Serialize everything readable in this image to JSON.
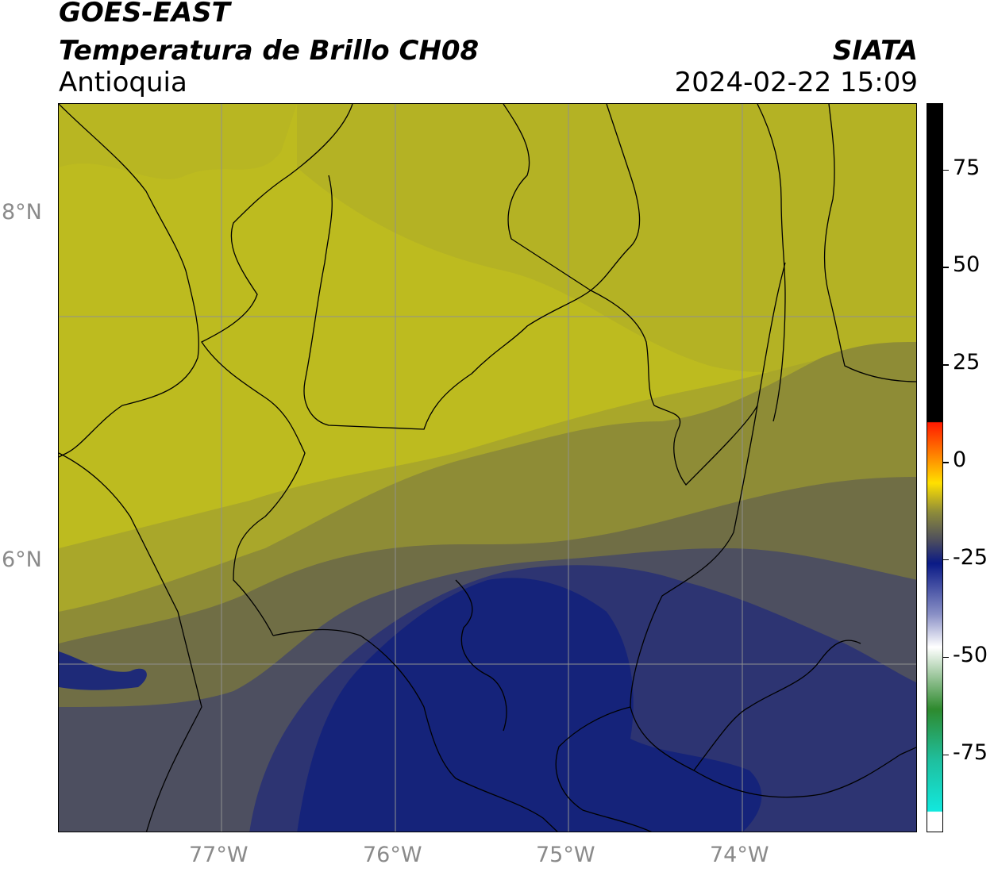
{
  "header": {
    "satellite": "GOES-EAST",
    "product": "Temperatura de Brillo CH08",
    "region": "Antioquia",
    "agency": "SIATA",
    "datetime": "2024-02-22 15:09"
  },
  "map": {
    "latitude_labels": [
      "8°N",
      "6°N"
    ],
    "longitude_labels": [
      "77°W",
      "76°W",
      "75°W",
      "74°W"
    ],
    "colors": {
      "yellow_bright": "#c0bd1e",
      "yellow": "#b2b023",
      "olive": "#8a8838",
      "gray_olive": "#6e6c46",
      "gray_blue": "#4a4c62",
      "navy": "#2a3278",
      "deep_navy": "#13237f",
      "gridline": "#909090",
      "border": "#000000"
    }
  },
  "colorbar": {
    "tick_labels": [
      "75",
      "50",
      "25",
      "0",
      "-25",
      "-50",
      "-75"
    ],
    "tick_values": [
      75,
      50,
      25,
      0,
      -25,
      -50,
      -75
    ],
    "range": [
      -95,
      92
    ]
  }
}
